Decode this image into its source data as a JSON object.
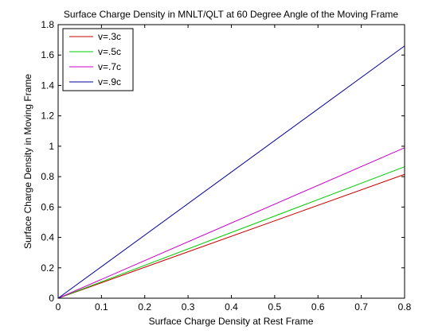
{
  "chart_data": {
    "type": "line",
    "title": "Surface Charge Density in MNLT/QLT at 60 Degree Angle of the Moving Frame",
    "xlabel": "Surface Charge Density at Rest Frame",
    "ylabel": "Surface Charge Density in Moving Frame",
    "xlim": [
      0,
      0.8
    ],
    "ylim": [
      0,
      1.8
    ],
    "xticks": [
      "0",
      "0.1",
      "0.2",
      "0.3",
      "0.4",
      "0.5",
      "0.6",
      "0.7",
      "0.8"
    ],
    "yticks": [
      "0",
      "0.2",
      "0.4",
      "0.6",
      "0.8",
      "1",
      "1.2",
      "1.4",
      "1.6",
      "1.8"
    ],
    "grid": false,
    "legend_position": "top-left",
    "series": [
      {
        "name": "v=.3c",
        "color": "#cc0000",
        "x": [
          0,
          0.8
        ],
        "y": [
          0,
          0.815
        ]
      },
      {
        "name": "v=.5c",
        "color": "#00cc00",
        "x": [
          0,
          0.8
        ],
        "y": [
          0,
          0.865
        ]
      },
      {
        "name": "v=.7c",
        "color": "#cc00cc",
        "x": [
          0,
          0.8
        ],
        "y": [
          0,
          0.99
        ]
      },
      {
        "name": "v=.9c",
        "color": "#000099",
        "x": [
          0,
          0.8
        ],
        "y": [
          0,
          1.66
        ]
      }
    ]
  }
}
